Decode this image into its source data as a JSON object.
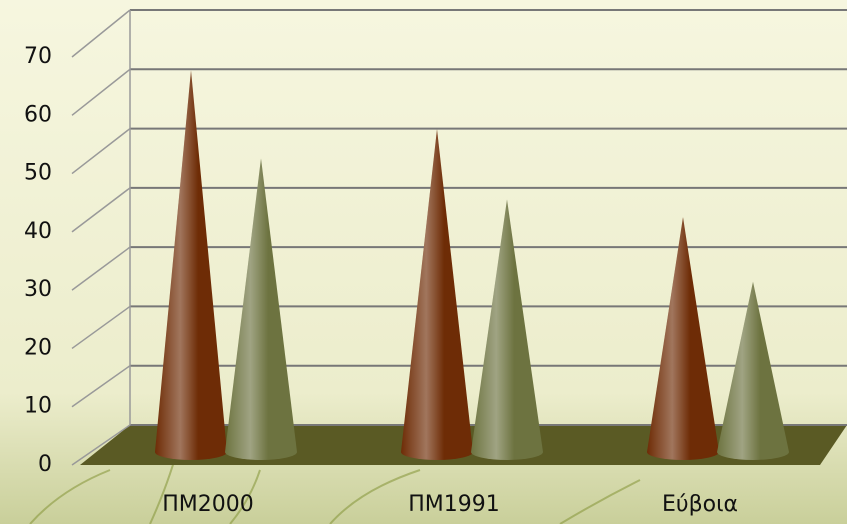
{
  "chart_data": {
    "type": "cone",
    "categories": [
      "ΠΜ2000",
      "ΠΜ1991",
      "Εύβοια"
    ],
    "series": [
      {
        "color": "#6e2c06",
        "values": [
          65,
          55,
          40
        ]
      },
      {
        "color": "#6d7340",
        "values": [
          50,
          43,
          29
        ]
      }
    ],
    "ylim": [
      0,
      70
    ],
    "yticks": [
      0,
      10,
      20,
      30,
      40,
      50,
      60,
      70
    ],
    "grid": true
  }
}
